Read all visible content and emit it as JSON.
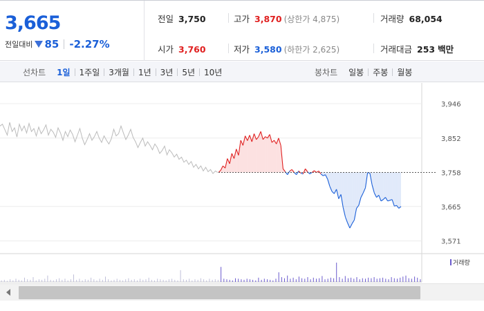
{
  "quote": {
    "current_price": "3,665",
    "change_label": "전일대비",
    "change_icon": "down-triangle-icon",
    "change_amount": "85",
    "change_rate": "-2.27%"
  },
  "stats": {
    "prev_close_label": "전일",
    "prev_close": "3,750",
    "high_label": "고가",
    "high": "3,870",
    "upper_limit": "(상한가 4,875)",
    "volume_label": "거래량",
    "volume": "68,054",
    "open_label": "시가",
    "open": "3,760",
    "low_label": "저가",
    "low": "3,580",
    "lower_limit": "(하한가 2,625)",
    "trade_value_label": "거래대금",
    "trade_value": "253",
    "trade_value_unit": "백만"
  },
  "tabs": {
    "line_title": "선차트",
    "line_tabs": [
      "1일",
      "1주일",
      "3개월",
      "1년",
      "3년",
      "5년",
      "10년"
    ],
    "line_active": "1일",
    "candle_title": "봉차트",
    "candle_tabs": [
      "일봉",
      "주봉",
      "월봉"
    ]
  },
  "colors": {
    "up": "#e02020",
    "down": "#1a5fd8",
    "previous_day": "#bbbbbb",
    "volume": "#6a5acd"
  },
  "chart_data": {
    "type": "line",
    "y_ticks": [
      3946,
      3852,
      3758,
      3665,
      3571
    ],
    "ylim": [
      3540,
      3980
    ],
    "reference_price": 3758,
    "reference_label": "3,758",
    "legend": "거래량",
    "previous_day_series": [
      3885,
      3890,
      3875,
      3860,
      3895,
      3870,
      3880,
      3855,
      3890,
      3872,
      3885,
      3866,
      3892,
      3870,
      3878,
      3858,
      3882,
      3864,
      3874,
      3888,
      3860,
      3876,
      3868,
      3854,
      3880,
      3866,
      3846,
      3870,
      3856,
      3874,
      3862,
      3842,
      3860,
      3878,
      3852,
      3834,
      3848,
      3864,
      3846,
      3856,
      3870,
      3852,
      3840,
      3858,
      3846,
      3836,
      3850,
      3876,
      3858,
      3864,
      3885,
      3866,
      3848,
      3860,
      3876,
      3854,
      3842,
      3826,
      3840,
      3852,
      3830,
      3842,
      3832,
      3820,
      3836,
      3826,
      3810,
      3818,
      3830,
      3806,
      3820,
      3812,
      3800,
      3808,
      3794,
      3800,
      3786,
      3792,
      3780,
      3788,
      3772,
      3780,
      3768,
      3776,
      3762,
      3772,
      3760,
      3766,
      3755,
      3762,
      3758
    ],
    "today_series": [
      3758,
      3764,
      3776,
      3770,
      3796,
      3782,
      3810,
      3796,
      3822,
      3805,
      3846,
      3832,
      3858,
      3845,
      3860,
      3842,
      3864,
      3848,
      3856,
      3870,
      3848,
      3856,
      3852,
      3862,
      3840,
      3846,
      3836,
      3852,
      3832,
      3768,
      3760,
      3752,
      3762,
      3766,
      3758,
      3752,
      3762,
      3756,
      3754,
      3768,
      3760,
      3754,
      3758,
      3763,
      3758,
      3762,
      3754,
      3749,
      3752,
      3740,
      3720,
      3706,
      3700,
      3712,
      3686,
      3698,
      3662,
      3636,
      3620,
      3606,
      3618,
      3628,
      3660,
      3668,
      3690,
      3702,
      3716,
      3758,
      3756,
      3724,
      3702,
      3690,
      3696,
      3680,
      3684,
      3690,
      3680,
      3682,
      3684,
      3666,
      3668,
      3660,
      3665
    ],
    "volume_series": [
      3,
      4,
      2,
      5,
      3,
      6,
      4,
      3,
      8,
      5,
      4,
      9,
      3,
      5,
      4,
      6,
      12,
      4,
      3,
      5,
      7,
      4,
      6,
      3,
      5,
      14,
      4,
      6,
      3,
      5,
      4,
      8,
      5,
      3,
      6,
      4,
      10,
      5,
      3,
      4,
      6,
      4,
      3,
      5,
      7,
      4,
      5,
      3,
      6,
      4,
      5,
      8,
      4,
      3,
      6,
      5,
      4,
      3,
      5,
      6,
      4,
      3,
      22,
      5,
      4,
      6,
      3,
      5,
      4,
      7,
      5,
      3,
      6,
      4,
      5,
      4,
      28,
      6,
      5,
      4,
      3,
      7,
      6,
      5,
      4,
      6,
      5,
      4,
      3,
      8,
      4,
      6,
      5,
      4,
      3,
      6,
      18,
      9,
      7,
      12,
      6,
      8,
      5,
      10,
      7,
      6,
      9,
      5,
      8,
      6,
      7,
      11,
      5,
      6,
      8,
      7,
      36,
      9,
      6,
      11,
      7,
      8,
      6,
      9,
      5,
      7,
      6,
      8,
      7,
      9,
      6,
      7,
      8,
      6,
      5,
      9,
      7,
      6,
      8,
      10,
      12,
      7,
      6,
      10,
      8,
      5
    ]
  }
}
